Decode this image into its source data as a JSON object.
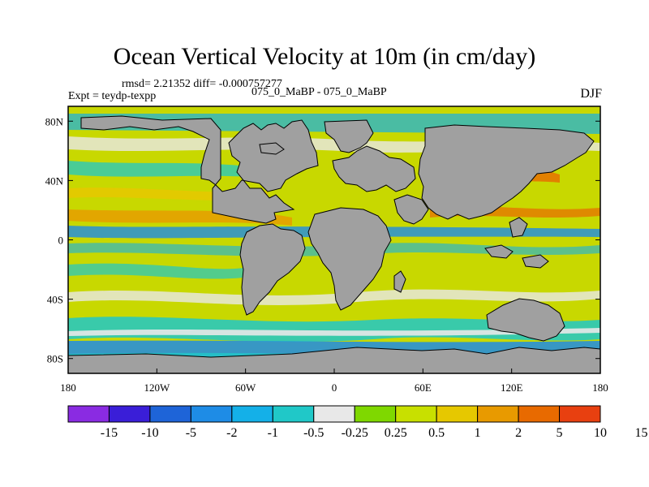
{
  "title": "Ocean Vertical Velocity at 10m (in cm/day)",
  "rmsd_line": "rmsd= 2.21352 diff= -0.000757277",
  "experiment_line": "Expt = teydp-texpp",
  "case_line": "075_0_MaBP - 075_0_MaBP",
  "season": "DJF",
  "map": {
    "lat_range": [
      -90,
      90
    ],
    "lon_range": [
      -180,
      180
    ],
    "y_ticks": [
      {
        "value": 80,
        "label": "80N"
      },
      {
        "value": 40,
        "label": "40N"
      },
      {
        "value": 0,
        "label": "0"
      },
      {
        "value": -40,
        "label": "40S"
      },
      {
        "value": -80,
        "label": "80S"
      }
    ],
    "x_ticks": [
      {
        "value": -180,
        "label": "180"
      },
      {
        "value": -120,
        "label": "120W"
      },
      {
        "value": -60,
        "label": "60W"
      },
      {
        "value": 0,
        "label": "0"
      },
      {
        "value": 60,
        "label": "60E"
      },
      {
        "value": 120,
        "label": "120E"
      },
      {
        "value": 180,
        "label": "180"
      }
    ],
    "land_color": "#a0a0a0"
  },
  "colorbar": {
    "colors": [
      "#8a2be2",
      "#3a1ed8",
      "#1e64d8",
      "#1e8ce6",
      "#14b0e8",
      "#20c8c8",
      "#e8e8e8",
      "#7fd800",
      "#c8e000",
      "#e6c800",
      "#e89a00",
      "#e86a00",
      "#e84010"
    ],
    "labels": [
      "-15",
      "-10",
      "-5",
      "-2",
      "-1",
      "-0.5",
      "-0.25",
      "0.25",
      "0.5",
      "1",
      "2",
      "5",
      "10",
      "15"
    ]
  }
}
